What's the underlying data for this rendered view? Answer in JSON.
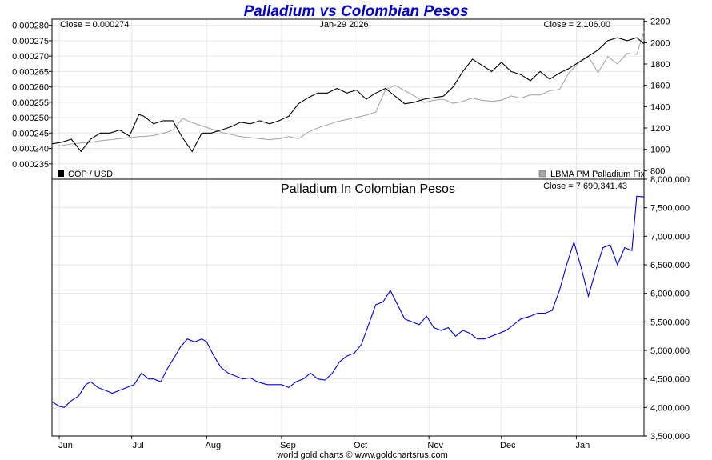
{
  "colors": {
    "title": "#0000cc",
    "cop_line": "#000000",
    "palladium_line": "#a8a8a8",
    "ratio_line": "#0000dd",
    "grid": "#e6e6e6",
    "frame": "#000000"
  },
  "title": "Palladium vs Colombian Pesos",
  "footer": "world gold charts © www.goldchartsrus.com",
  "x_axis": {
    "months": [
      "Jun",
      "Jul",
      "Aug",
      "Sep",
      "Oct",
      "Nov",
      "Dec",
      "Jan"
    ],
    "month_day_index": [
      3,
      33,
      64,
      95,
      125,
      156,
      186,
      217
    ],
    "day_range": [
      0,
      245
    ]
  },
  "chart_data": [
    {
      "type": "line",
      "panel": "top",
      "date_header": "Jan-29  2026",
      "left_close": "Close = 0.000274",
      "right_close": "Close = 2,106.00",
      "left_legend": "COP / USD",
      "right_legend": "LBMA PM Palladium Fix",
      "left_ylim": [
        0.00023,
        0.000282
      ],
      "right_ylim": [
        720,
        2220
      ],
      "left_ticks": [
        "0.000235",
        "0.000240",
        "0.000245",
        "0.000250",
        "0.000255",
        "0.000260",
        "0.000265",
        "0.000270",
        "0.000275",
        "0.000280"
      ],
      "left_tick_values": [
        0.000235,
        0.00024,
        0.000245,
        0.00025,
        0.000255,
        0.00026,
        0.000265,
        0.00027,
        0.000275,
        0.00028
      ],
      "right_ticks": [
        "800",
        "1000",
        "1200",
        "1400",
        "1600",
        "1800",
        "2000",
        "2200"
      ],
      "right_tick_values": [
        800,
        1000,
        1200,
        1400,
        1600,
        1800,
        2000,
        2200
      ],
      "series": [
        {
          "name": "COP / USD",
          "axis": "left",
          "x": [
            0,
            4,
            8,
            12,
            16,
            20,
            24,
            28,
            32,
            36,
            38,
            42,
            46,
            50,
            54,
            58,
            62,
            66,
            70,
            74,
            78,
            82,
            86,
            90,
            94,
            98,
            102,
            106,
            110,
            114,
            118,
            122,
            126,
            130,
            134,
            138,
            142,
            146,
            150,
            154,
            158,
            162,
            166,
            170,
            174,
            178,
            182,
            186,
            190,
            194,
            198,
            202,
            206,
            210,
            214,
            218,
            222,
            226,
            230,
            234,
            238,
            242,
            245
          ],
          "y": [
            0.0002415,
            0.000242,
            0.000243,
            0.000239,
            0.000243,
            0.000245,
            0.000245,
            0.000246,
            0.000244,
            0.000251,
            0.0002505,
            0.000248,
            0.000249,
            0.000249,
            0.0002435,
            0.000239,
            0.000245,
            0.000245,
            0.000246,
            0.000247,
            0.0002485,
            0.000248,
            0.000249,
            0.000248,
            0.000249,
            0.0002505,
            0.0002545,
            0.0002565,
            0.000258,
            0.000258,
            0.0002595,
            0.000258,
            0.000259,
            0.000256,
            0.000258,
            0.0002595,
            0.000257,
            0.0002545,
            0.000255,
            0.000256,
            0.0002565,
            0.000257,
            0.00026,
            0.000265,
            0.000269,
            0.000267,
            0.000265,
            0.000268,
            0.000265,
            0.000264,
            0.000262,
            0.000265,
            0.0002625,
            0.0002645,
            0.000266,
            0.000268,
            0.00027,
            0.000272,
            0.000275,
            0.000276,
            0.000275,
            0.000276,
            0.000274
          ]
        },
        {
          "name": "LBMA PM Palladium Fix",
          "axis": "right",
          "x": [
            0,
            4,
            8,
            12,
            16,
            20,
            24,
            28,
            32,
            36,
            38,
            42,
            46,
            50,
            54,
            58,
            62,
            66,
            70,
            74,
            78,
            82,
            86,
            90,
            94,
            98,
            102,
            106,
            110,
            114,
            118,
            122,
            126,
            130,
            134,
            138,
            142,
            146,
            150,
            154,
            158,
            162,
            166,
            170,
            174,
            178,
            182,
            186,
            190,
            194,
            198,
            202,
            206,
            210,
            214,
            218,
            222,
            226,
            230,
            234,
            238,
            242,
            245
          ],
          "y": [
            1030,
            1035,
            1050,
            1060,
            1065,
            1080,
            1090,
            1100,
            1110,
            1120,
            1120,
            1130,
            1150,
            1180,
            1290,
            1250,
            1220,
            1190,
            1160,
            1140,
            1120,
            1110,
            1100,
            1090,
            1100,
            1120,
            1100,
            1160,
            1200,
            1230,
            1260,
            1280,
            1300,
            1320,
            1350,
            1560,
            1600,
            1550,
            1500,
            1440,
            1460,
            1470,
            1430,
            1450,
            1480,
            1460,
            1450,
            1460,
            1500,
            1480,
            1510,
            1510,
            1550,
            1560,
            1720,
            1810,
            1870,
            1720,
            1870,
            1800,
            1900,
            1890,
            2106
          ]
        }
      ]
    },
    {
      "type": "line",
      "panel": "bottom",
      "title": "Palladium In Colombian Pesos",
      "right_close": "Close = 7,690,341.43",
      "ylim": [
        3500000,
        8000000
      ],
      "right_ticks": [
        "3,500,000",
        "4,000,000",
        "4,500,000",
        "5,000,000",
        "5,500,000",
        "6,000,000",
        "6,500,000",
        "7,000,000",
        "7,500,000",
        "8,000,000"
      ],
      "right_tick_values": [
        3500000,
        4000000,
        4500000,
        5000000,
        5500000,
        6000000,
        6500000,
        7000000,
        7500000,
        8000000
      ],
      "series": [
        {
          "name": "Palladium In Colombian Pesos",
          "x": [
            0,
            3,
            5,
            8,
            11,
            14,
            16,
            19,
            22,
            25,
            28,
            31,
            34,
            37,
            40,
            42,
            45,
            48,
            51,
            53,
            56,
            59,
            62,
            64,
            67,
            70,
            73,
            76,
            79,
            82,
            85,
            89,
            92,
            95,
            98,
            101,
            104,
            107,
            110,
            113,
            116,
            119,
            122,
            125,
            128,
            131,
            134,
            137,
            140,
            143,
            146,
            149,
            152,
            155,
            158,
            161,
            164,
            167,
            170,
            173,
            176,
            179,
            182,
            185,
            188,
            191,
            194,
            198,
            201,
            204,
            207,
            210,
            213,
            216,
            219,
            222,
            225,
            228,
            231,
            234,
            237,
            240,
            242,
            245
          ],
          "y": [
            4100000,
            4020000,
            4000000,
            4120000,
            4200000,
            4400000,
            4450000,
            4350000,
            4300000,
            4250000,
            4300000,
            4350000,
            4400000,
            4600000,
            4500000,
            4500000,
            4450000,
            4700000,
            4900000,
            5050000,
            5200000,
            5150000,
            5200000,
            5150000,
            4900000,
            4700000,
            4600000,
            4550000,
            4500000,
            4520000,
            4450000,
            4400000,
            4400000,
            4400000,
            4350000,
            4450000,
            4500000,
            4600000,
            4500000,
            4480000,
            4600000,
            4800000,
            4900000,
            4950000,
            5100000,
            5450000,
            5800000,
            5850000,
            6050000,
            5800000,
            5550000,
            5500000,
            5450000,
            5600000,
            5400000,
            5350000,
            5400000,
            5250000,
            5350000,
            5300000,
            5200000,
            5200000,
            5250000,
            5300000,
            5350000,
            5450000,
            5550000,
            5600000,
            5650000,
            5650000,
            5700000,
            6050000,
            6500000,
            6900000,
            6450000,
            5950000,
            6400000,
            6800000,
            6850000,
            6500000,
            6800000,
            6750000,
            7700000,
            7690341
          ]
        }
      ]
    }
  ]
}
